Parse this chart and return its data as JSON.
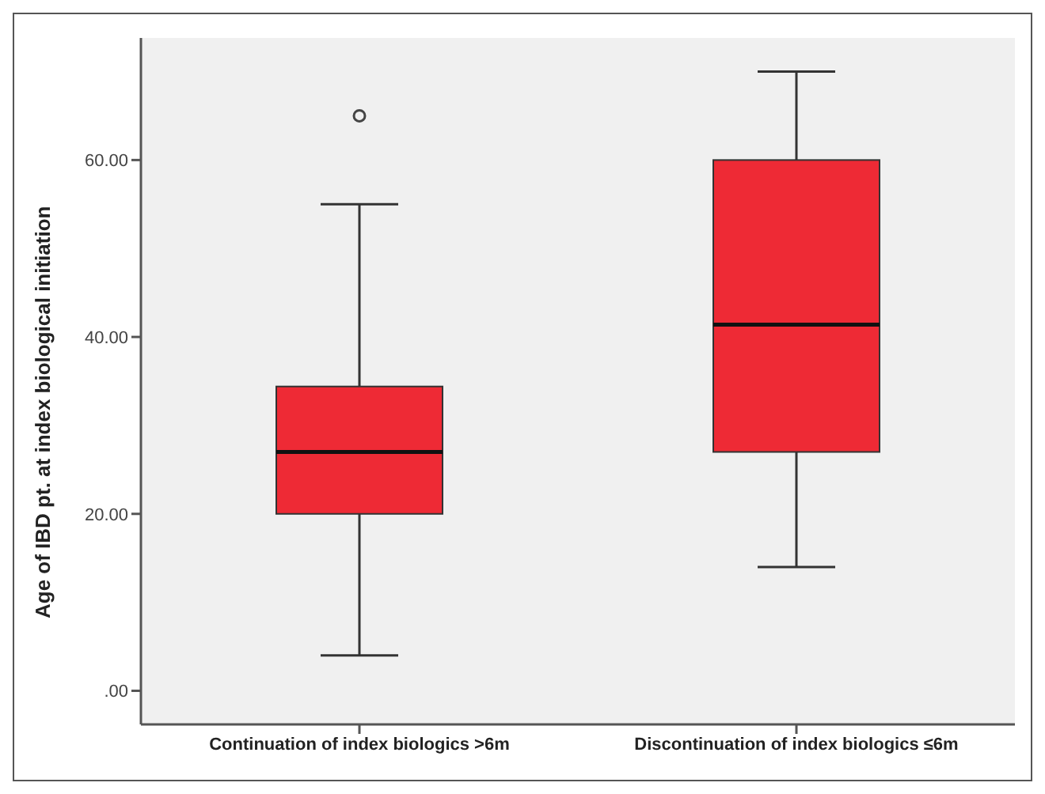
{
  "chart_data": {
    "type": "box",
    "ylabel": "Age of IBD pt. at index biological initiation",
    "categories": [
      "Continuation of index biologics >6m",
      "Discontinuation of index biologics ≤6m"
    ],
    "color": "#ee2a35",
    "boxes": [
      {
        "low": 4,
        "q1": 20,
        "median": 27,
        "q3": 34.4,
        "high": 55,
        "outliers": [
          65
        ]
      },
      {
        "low": 14,
        "q1": 27,
        "median": 41.4,
        "q3": 60,
        "high": 70
      }
    ],
    "ylim": [
      -3.8,
      73.8
    ],
    "yticks": [
      {
        "value": 0,
        "label": ".00"
      },
      {
        "value": 20,
        "label": "20.00"
      },
      {
        "value": 40,
        "label": "40.00"
      },
      {
        "value": 60,
        "label": "60.00"
      }
    ]
  }
}
